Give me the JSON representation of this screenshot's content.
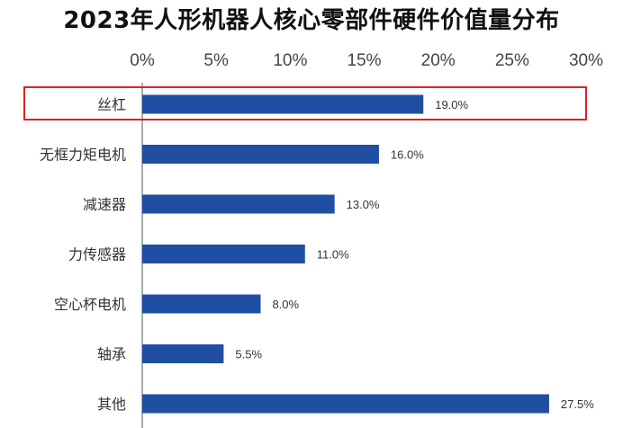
{
  "chart_data": {
    "type": "bar",
    "orientation": "horizontal",
    "title": "2023年人形机器人核心零部件硬件价值量分布",
    "x_ticks": [
      "0%",
      "5%",
      "10%",
      "15%",
      "20%",
      "25%",
      "30%"
    ],
    "xlim": [
      0,
      30
    ],
    "x_axis_position": "top",
    "categories": [
      "丝杠",
      "无框力矩电机",
      "减速器",
      "力传感器",
      "空心杯电机",
      "轴承",
      "其他"
    ],
    "values": [
      19.0,
      16.0,
      13.0,
      11.0,
      8.0,
      5.5,
      27.5
    ],
    "data_labels": [
      "19.0%",
      "16.0%",
      "13.0%",
      "11.0%",
      "8.0%",
      "5.5%",
      "27.5%"
    ],
    "highlighted_category": "丝杠",
    "grid": false,
    "legend": "none"
  },
  "colors": {
    "bar": "#1f4ea3",
    "highlight_border": "#e02020",
    "axis": "#555555"
  }
}
